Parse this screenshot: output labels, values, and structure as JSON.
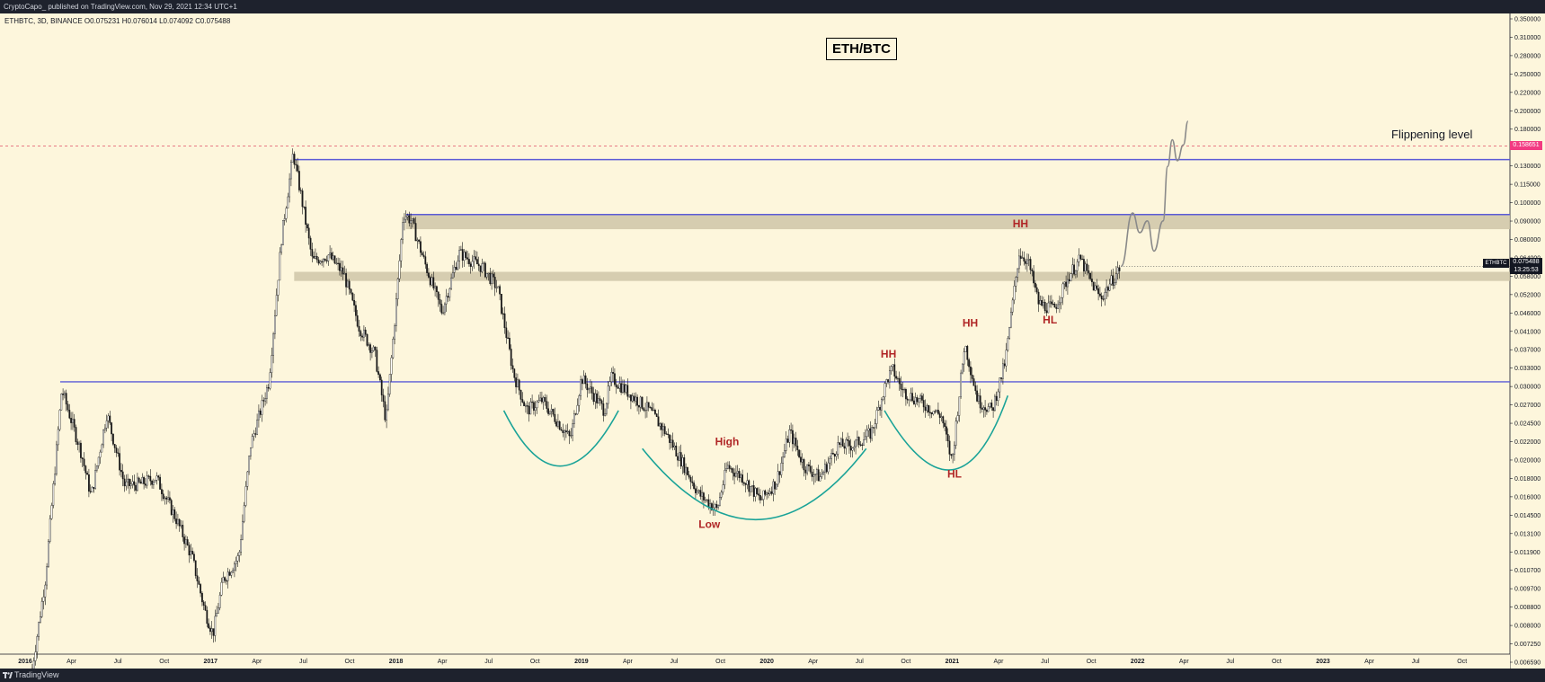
{
  "header": {
    "published": "CryptoCapo_ published on TradingView.com, Nov 29, 2021 12:34 UTC+1",
    "ohlc": "ETHBTC, 3D, BINANCE  O0.075231  H0.076014  L0.074092  C0.075488"
  },
  "footer": {
    "brand": "TradingView"
  },
  "colors": {
    "background": "#fdf6dc",
    "candle": "#1a1a1a",
    "level_line": "#5b5bd6",
    "zone": "#cfc6a8",
    "arc": "#1aa398",
    "label": "#b02626",
    "projection": "#8a8a8a",
    "flip_line": "#e0506a"
  },
  "chart_data": {
    "type": "candlestick",
    "title": "ETH/BTC",
    "symbol": "ETHBTC",
    "y_scale": "log",
    "ylim": [
      0.0063,
      0.36
    ],
    "y_ticks": [
      "0.350000",
      "0.310000",
      "0.280000",
      "0.250000",
      "0.220000",
      "0.200000",
      "0.180000",
      "0.145000",
      "0.130000",
      "0.115000",
      "0.100000",
      "0.090000",
      "0.080000",
      "0.064000",
      "0.058000",
      "0.052000",
      "0.046000",
      "0.041000",
      "0.037000",
      "0.033000",
      "0.030000",
      "0.027000",
      "0.024500",
      "0.022000",
      "0.020000",
      "0.018000",
      "0.016000",
      "0.014500",
      "0.013100",
      "0.011900",
      "0.010700",
      "0.009700",
      "0.008800",
      "0.008000",
      "0.007250",
      "0.006590"
    ],
    "x_ticks": [
      "2016",
      "Apr",
      "Jul",
      "Oct",
      "2017",
      "Apr",
      "Jul",
      "Oct",
      "2018",
      "Apr",
      "Jul",
      "Oct",
      "2019",
      "Apr",
      "Jul",
      "Oct",
      "2020",
      "Apr",
      "Jul",
      "Oct",
      "2021",
      "Apr",
      "Jul",
      "Oct",
      "2022",
      "Apr",
      "Jul",
      "Oct",
      "2023",
      "Apr",
      "Jul",
      "Oct"
    ],
    "price_path": [
      [
        "2016-01-15",
        0.0063
      ],
      [
        "2016-02-10",
        0.011
      ],
      [
        "2016-03-13",
        0.0353
      ],
      [
        "2016-04-20",
        0.024
      ],
      [
        "2016-05-10",
        0.0182
      ],
      [
        "2016-06-10",
        0.0305
      ],
      [
        "2016-07-15",
        0.0195
      ],
      [
        "2016-08-15",
        0.0197
      ],
      [
        "2016-09-15",
        0.0205
      ],
      [
        "2016-10-25",
        0.0158
      ],
      [
        "2016-11-25",
        0.0125
      ],
      [
        "2016-12-20",
        0.009
      ],
      [
        "2017-01-05",
        0.0078
      ],
      [
        "2017-01-25",
        0.0109
      ],
      [
        "2017-02-25",
        0.0126
      ],
      [
        "2017-03-20",
        0.025
      ],
      [
        "2017-04-25",
        0.037
      ],
      [
        "2017-05-20",
        0.09
      ],
      [
        "2017-06-12",
        0.152
      ],
      [
        "2017-06-30",
        0.112
      ],
      [
        "2017-07-20",
        0.078
      ],
      [
        "2017-08-20",
        0.081
      ],
      [
        "2017-09-20",
        0.072
      ],
      [
        "2017-10-20",
        0.052
      ],
      [
        "2017-11-20",
        0.044
      ],
      [
        "2017-12-12",
        0.029
      ],
      [
        "2017-12-31",
        0.058
      ],
      [
        "2018-01-15",
        0.105
      ],
      [
        "2018-01-31",
        0.1
      ],
      [
        "2018-02-25",
        0.078
      ],
      [
        "2018-04-01",
        0.057
      ],
      [
        "2018-05-05",
        0.082
      ],
      [
        "2018-06-20",
        0.075
      ],
      [
        "2018-07-20",
        0.066
      ],
      [
        "2018-08-20",
        0.039
      ],
      [
        "2018-09-15",
        0.031
      ],
      [
        "2018-10-15",
        0.033
      ],
      [
        "2018-11-15",
        0.029
      ],
      [
        "2018-12-10",
        0.026
      ],
      [
        "2019-01-01",
        0.038
      ],
      [
        "2019-02-15",
        0.031
      ],
      [
        "2019-03-01",
        0.038
      ],
      [
        "2019-04-10",
        0.034
      ],
      [
        "2019-05-15",
        0.031
      ],
      [
        "2019-06-15",
        0.0272
      ],
      [
        "2019-07-15",
        0.023
      ],
      [
        "2019-08-20",
        0.0185
      ],
      [
        "2019-09-25",
        0.0168
      ],
      [
        "2019-10-15",
        0.022
      ],
      [
        "2019-11-15",
        0.0205
      ],
      [
        "2019-12-20",
        0.0178
      ],
      [
        "2020-01-20",
        0.02
      ],
      [
        "2020-02-15",
        0.0272
      ],
      [
        "2020-03-15",
        0.022
      ],
      [
        "2020-04-15",
        0.0205
      ],
      [
        "2020-05-20",
        0.025
      ],
      [
        "2020-06-20",
        0.025
      ],
      [
        "2020-07-25",
        0.027
      ],
      [
        "2020-08-25",
        0.0375
      ],
      [
        "2020-09-05",
        0.04
      ],
      [
        "2020-09-25",
        0.035
      ],
      [
        "2020-10-25",
        0.033
      ],
      [
        "2020-12-10",
        0.03
      ],
      [
        "2020-12-31",
        0.0225
      ],
      [
        "2021-01-25",
        0.047
      ],
      [
        "2021-02-20",
        0.033
      ],
      [
        "2021-03-20",
        0.031
      ],
      [
        "2021-04-15",
        0.042
      ],
      [
        "2021-05-12",
        0.082
      ],
      [
        "2021-05-30",
        0.078
      ],
      [
        "2021-06-20",
        0.06
      ],
      [
        "2021-07-20",
        0.058
      ],
      [
        "2021-08-20",
        0.072
      ],
      [
        "2021-09-10",
        0.079
      ],
      [
        "2021-09-30",
        0.069
      ],
      [
        "2021-10-20",
        0.062
      ],
      [
        "2021-11-29",
        0.0755
      ]
    ],
    "projection_path": [
      [
        "2021-11-29",
        0.0755
      ],
      [
        "2021-12-22",
        0.105
      ],
      [
        "2022-01-05",
        0.093
      ],
      [
        "2022-01-20",
        0.1
      ],
      [
        "2022-02-02",
        0.083
      ],
      [
        "2022-02-20",
        0.1
      ],
      [
        "2022-03-01",
        0.14
      ],
      [
        "2022-03-10",
        0.165
      ],
      [
        "2022-03-20",
        0.145
      ],
      [
        "2022-04-01",
        0.16
      ],
      [
        "2022-04-10",
        0.185
      ]
    ],
    "levels": [
      {
        "from": "2016-03-10",
        "value": 0.037
      },
      {
        "from": "2017-06-14",
        "value": 0.146
      },
      {
        "from": "2018-01-20",
        "value": 0.104
      }
    ],
    "zones": [
      {
        "from": "2018-01-20",
        "low": 0.095,
        "high": 0.104
      },
      {
        "from": "2017-06-14",
        "low": 0.069,
        "high": 0.073
      }
    ],
    "flippening": {
      "value": 0.15865,
      "label": "Flippening level",
      "price_text": "0.158651"
    },
    "last_price": {
      "ticker": "ETHBTC",
      "price": "0.075488",
      "countdown": "13:25:53",
      "value": 0.075488
    },
    "annotations": [
      {
        "text": "HH",
        "date": "2020-08-28",
        "value": 0.043
      },
      {
        "text": "HH",
        "date": "2021-02-05",
        "value": 0.052
      },
      {
        "text": "HH",
        "date": "2021-05-15",
        "value": 0.096
      },
      {
        "text": "HL",
        "date": "2021-01-05",
        "value": 0.0205
      },
      {
        "text": "HL",
        "date": "2021-07-12",
        "value": 0.053
      },
      {
        "text": "High",
        "date": "2019-10-15",
        "value": 0.025
      },
      {
        "text": "Low",
        "date": "2019-09-10",
        "value": 0.015
      }
    ],
    "arcs": [
      {
        "start": [
          "2018-08-01",
          0.031
        ],
        "bottom": [
          "2018-11-20",
          0.022
        ],
        "end": [
          "2019-03-15",
          0.031
        ]
      },
      {
        "start": [
          "2019-05-01",
          0.0245
        ],
        "bottom": [
          "2019-12-10",
          0.0158
        ],
        "end": [
          "2020-07-15",
          0.0245
        ]
      },
      {
        "start": [
          "2020-08-20",
          0.031
        ],
        "bottom": [
          "2020-12-31",
          0.0215
        ],
        "end": [
          "2021-04-20",
          0.034
        ]
      }
    ]
  }
}
